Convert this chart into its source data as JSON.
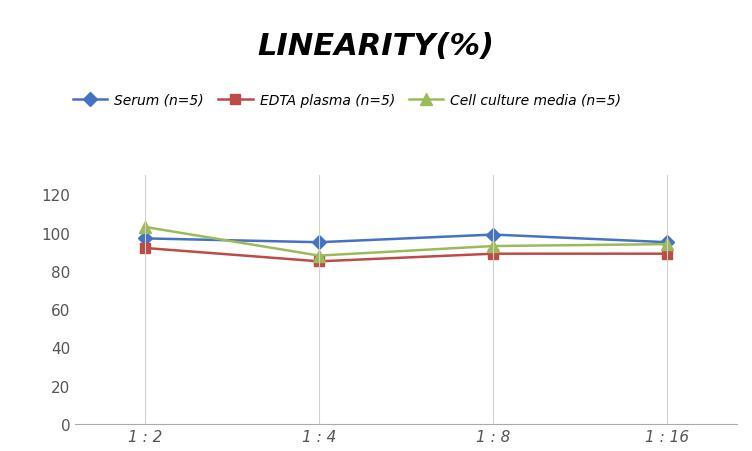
{
  "title": "LINEARITY(%)",
  "x_labels": [
    "1 : 2",
    "1 : 4",
    "1 : 8",
    "1 : 16"
  ],
  "x_positions": [
    0,
    1,
    2,
    3
  ],
  "series": [
    {
      "label": "Serum (n=5)",
      "values": [
        97,
        95,
        99,
        95
      ],
      "color": "#4472C4",
      "marker": "D",
      "markersize": 7,
      "linewidth": 1.8
    },
    {
      "label": "EDTA plasma (n=5)",
      "values": [
        92,
        85,
        89,
        89
      ],
      "color": "#BE4B48",
      "marker": "s",
      "markersize": 7,
      "linewidth": 1.8
    },
    {
      "label": "Cell culture media (n=5)",
      "values": [
        103,
        88,
        93,
        94
      ],
      "color": "#9BBB59",
      "marker": "^",
      "markersize": 8,
      "linewidth": 1.8
    }
  ],
  "ylim": [
    0,
    130
  ],
  "yticks": [
    0,
    20,
    40,
    60,
    80,
    100,
    120
  ],
  "grid_color": "#D0D0D0",
  "background_color": "#FFFFFF",
  "title_fontsize": 22,
  "title_fontstyle": "italic",
  "title_fontweight": "bold",
  "legend_fontsize": 10,
  "tick_fontsize": 11
}
